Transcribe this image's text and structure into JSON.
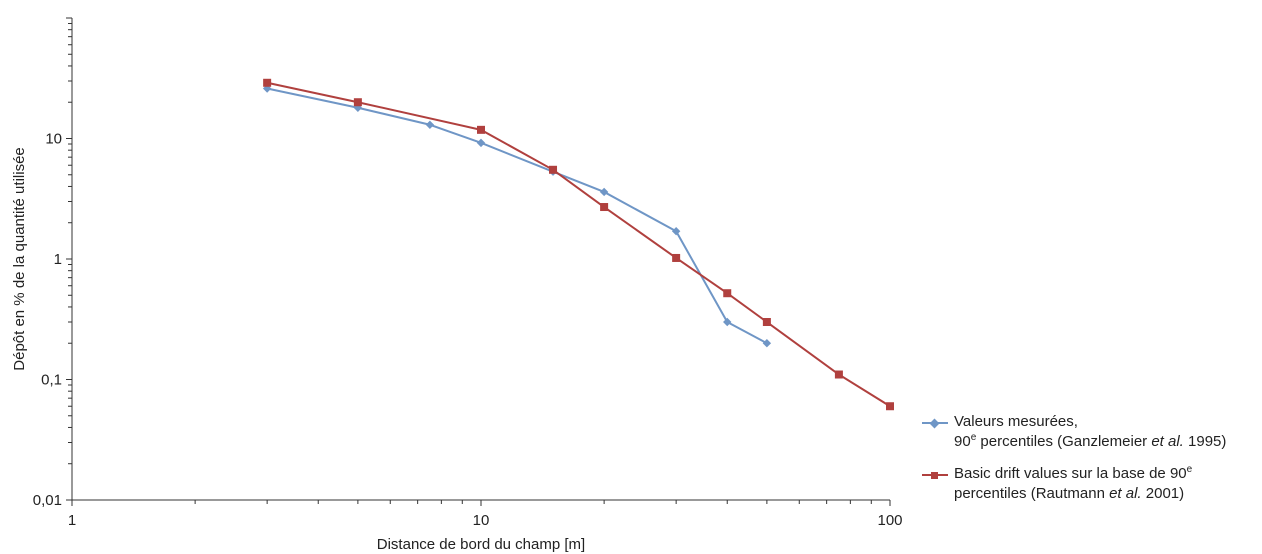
{
  "chart_data": {
    "type": "line",
    "x_scale": "log",
    "y_scale": "log",
    "xlim": [
      1,
      100
    ],
    "ylim": [
      0.01,
      100
    ],
    "xlabel": "Distance de bord du champ [m]",
    "ylabel": "Dépôt en % de la quantité utilisée",
    "x_ticks": [
      {
        "value": 1,
        "label": "1"
      },
      {
        "value": 10,
        "label": "10"
      },
      {
        "value": 100,
        "label": "100"
      }
    ],
    "y_ticks": [
      {
        "value": 0.01,
        "label": "0,01"
      },
      {
        "value": 0.1,
        "label": "0,1"
      },
      {
        "value": 1,
        "label": "1"
      },
      {
        "value": 10,
        "label": "10"
      }
    ],
    "grid": false,
    "legend_position": "bottom-right",
    "series": [
      {
        "color": "#6f96c6",
        "marker": "diamond",
        "x": [
          3,
          5,
          7.5,
          10,
          15,
          20,
          30,
          40,
          50
        ],
        "y": [
          26,
          18,
          13,
          9.2,
          5.3,
          3.6,
          1.7,
          0.3,
          0.2
        ]
      },
      {
        "color": "#b0403e",
        "marker": "square",
        "x": [
          3,
          5,
          10,
          15,
          20,
          30,
          40,
          50,
          75,
          100
        ],
        "y": [
          29,
          20,
          11.8,
          5.5,
          2.7,
          1.02,
          0.52,
          0.3,
          0.11,
          0.06
        ]
      }
    ]
  },
  "legend": {
    "items": [
      {
        "line1": "Valeurs mesurées,",
        "line2_a": "90",
        "line2_sup": "e",
        "line2_b": " percentiles (Ganzlemeier ",
        "line2_i": "et al.",
        "line2_c": " 1995)"
      },
      {
        "line1_a": "Basic drift values sur la base de 90",
        "line1_sup": "e",
        "line2_a": "percentiles (Rautmann ",
        "line2_i": "et al.",
        "line2_c": " 2001)"
      }
    ]
  }
}
